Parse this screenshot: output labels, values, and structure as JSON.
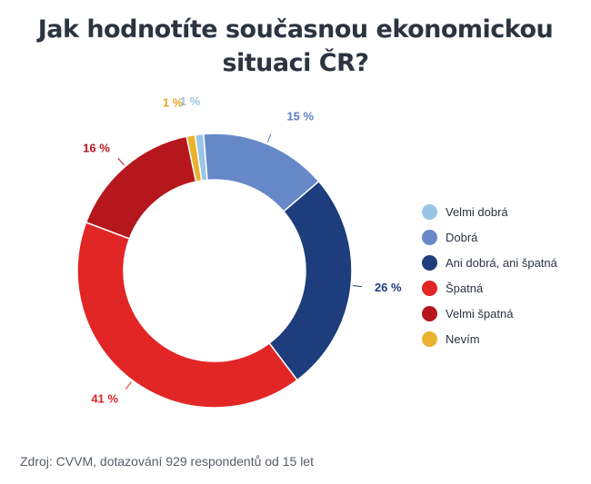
{
  "title_lines": [
    "Jak hodnotíte současnou ekonomickou",
    "situaci ČR?"
  ],
  "source": "Zdroj: CVVM, dotazování 929 respondentů od 15 let",
  "chart_data": {
    "type": "pie",
    "variant": "donut",
    "title": "Jak hodnotíte současnou ekonomickou situaci ČR?",
    "legend_position": "right",
    "slices": [
      {
        "name": "Velmi dobrá",
        "value": 1,
        "label": "1 %",
        "color": "#9ac4e6",
        "label_color": "#9ac4e6"
      },
      {
        "name": "Dobrá",
        "value": 15,
        "label": "15 %",
        "color": "#6688c8",
        "label_color": "#5c7fc0"
      },
      {
        "name": "Ani dobrá, ani špatná",
        "value": 26,
        "label": "26 %",
        "color": "#1d3d7c",
        "label_color": "#1d3d7c"
      },
      {
        "name": "Špatná",
        "value": 41,
        "label": "41 %",
        "color": "#e22626",
        "label_color": "#d62424"
      },
      {
        "name": "Velmi špatná",
        "value": 16,
        "label": "16 %",
        "color": "#b5171d",
        "label_color": "#b5171d"
      },
      {
        "name": "Nevím",
        "value": 1,
        "label": "1 %",
        "color": "#ebb22e",
        "label_color": "#e0a628"
      }
    ]
  }
}
